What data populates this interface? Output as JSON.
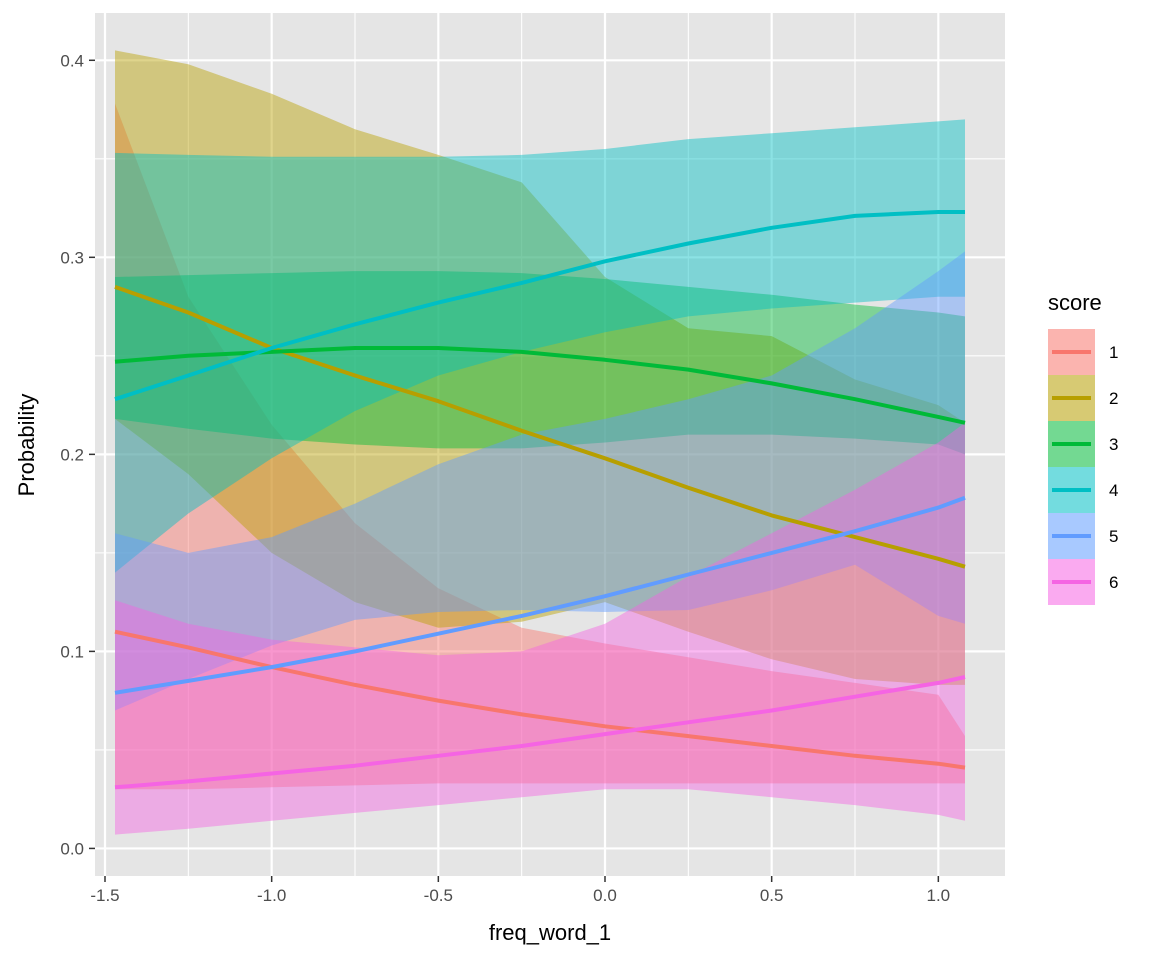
{
  "chart_data": {
    "type": "line",
    "subtype": "ribbon with confidence bands",
    "xlabel": "freq_word_1",
    "ylabel": "Probability",
    "xlim": [
      -1.53,
      1.2
    ],
    "ylim": [
      -0.014,
      0.424
    ],
    "x_ticks": [
      -1.5,
      -1.0,
      -0.5,
      0.0,
      0.5,
      1.0
    ],
    "x_tick_labels": [
      "-1.5",
      "-1.0",
      "-0.5",
      "0.0",
      "0.5",
      "1.0"
    ],
    "y_ticks": [
      0.0,
      0.1,
      0.2,
      0.3,
      0.4
    ],
    "y_tick_labels": [
      "0.0",
      "0.1",
      "0.2",
      "0.3",
      "0.4"
    ],
    "grid": true,
    "legend": {
      "title": "score",
      "position": "right"
    },
    "x": [
      -1.47,
      -1.25,
      -1.0,
      -0.75,
      -0.5,
      -0.25,
      0.0,
      0.25,
      0.5,
      0.75,
      1.0,
      1.08
    ],
    "series": [
      {
        "name": "1",
        "color": "#F8766D",
        "values": [
          0.11,
          0.102,
          0.092,
          0.083,
          0.075,
          0.068,
          0.062,
          0.057,
          0.052,
          0.047,
          0.043,
          0.041
        ],
        "lower": [
          0.03,
          0.03,
          0.031,
          0.032,
          0.033,
          0.033,
          0.033,
          0.033,
          0.033,
          0.033,
          0.033,
          0.033
        ],
        "upper": [
          0.378,
          0.28,
          0.215,
          0.165,
          0.132,
          0.112,
          0.104,
          0.097,
          0.09,
          0.084,
          0.078,
          0.057
        ]
      },
      {
        "name": "2",
        "color": "#B79F00",
        "values": [
          0.285,
          0.272,
          0.254,
          0.24,
          0.227,
          0.212,
          0.198,
          0.183,
          0.169,
          0.158,
          0.147,
          0.143
        ],
        "lower": [
          0.218,
          0.19,
          0.15,
          0.125,
          0.112,
          0.115,
          0.125,
          0.11,
          0.096,
          0.086,
          0.083,
          0.083
        ],
        "upper": [
          0.405,
          0.398,
          0.383,
          0.365,
          0.352,
          0.338,
          0.29,
          0.264,
          0.26,
          0.238,
          0.225,
          0.216
        ]
      },
      {
        "name": "3",
        "color": "#00BA38",
        "values": [
          0.247,
          0.25,
          0.252,
          0.254,
          0.254,
          0.252,
          0.248,
          0.243,
          0.236,
          0.228,
          0.219,
          0.216
        ],
        "lower": [
          0.218,
          0.213,
          0.208,
          0.205,
          0.203,
          0.203,
          0.206,
          0.21,
          0.21,
          0.208,
          0.205,
          0.2
        ],
        "upper": [
          0.29,
          0.291,
          0.292,
          0.293,
          0.293,
          0.292,
          0.289,
          0.285,
          0.281,
          0.276,
          0.272,
          0.27
        ]
      },
      {
        "name": "4",
        "color": "#00BFC4",
        "values": [
          0.228,
          0.24,
          0.254,
          0.266,
          0.277,
          0.287,
          0.298,
          0.307,
          0.315,
          0.321,
          0.323,
          0.323
        ],
        "lower": [
          0.14,
          0.17,
          0.198,
          0.222,
          0.24,
          0.252,
          0.262,
          0.27,
          0.274,
          0.277,
          0.28,
          0.28
        ],
        "upper": [
          0.353,
          0.352,
          0.351,
          0.351,
          0.351,
          0.352,
          0.355,
          0.36,
          0.363,
          0.366,
          0.369,
          0.37
        ]
      },
      {
        "name": "5",
        "color": "#619CFF",
        "values": [
          0.079,
          0.085,
          0.092,
          0.1,
          0.109,
          0.118,
          0.128,
          0.139,
          0.15,
          0.161,
          0.173,
          0.178
        ],
        "lower": [
          0.07,
          0.086,
          0.103,
          0.116,
          0.12,
          0.121,
          0.12,
          0.121,
          0.131,
          0.144,
          0.118,
          0.114
        ],
        "upper": [
          0.16,
          0.15,
          0.158,
          0.175,
          0.195,
          0.21,
          0.218,
          0.228,
          0.24,
          0.264,
          0.293,
          0.303
        ]
      },
      {
        "name": "6",
        "color": "#F564E3",
        "values": [
          0.031,
          0.034,
          0.038,
          0.042,
          0.047,
          0.052,
          0.058,
          0.064,
          0.07,
          0.077,
          0.084,
          0.087
        ],
        "lower": [
          0.007,
          0.01,
          0.014,
          0.018,
          0.022,
          0.026,
          0.03,
          0.03,
          0.026,
          0.022,
          0.017,
          0.014
        ],
        "upper": [
          0.126,
          0.114,
          0.106,
          0.102,
          0.098,
          0.1,
          0.114,
          0.138,
          0.16,
          0.182,
          0.206,
          0.216
        ]
      }
    ]
  },
  "colors": {
    "panel_background": "#E5E5E5",
    "grid_major": "#FFFFFF",
    "tick_text": "#4D4D4D",
    "text": "#000000"
  }
}
